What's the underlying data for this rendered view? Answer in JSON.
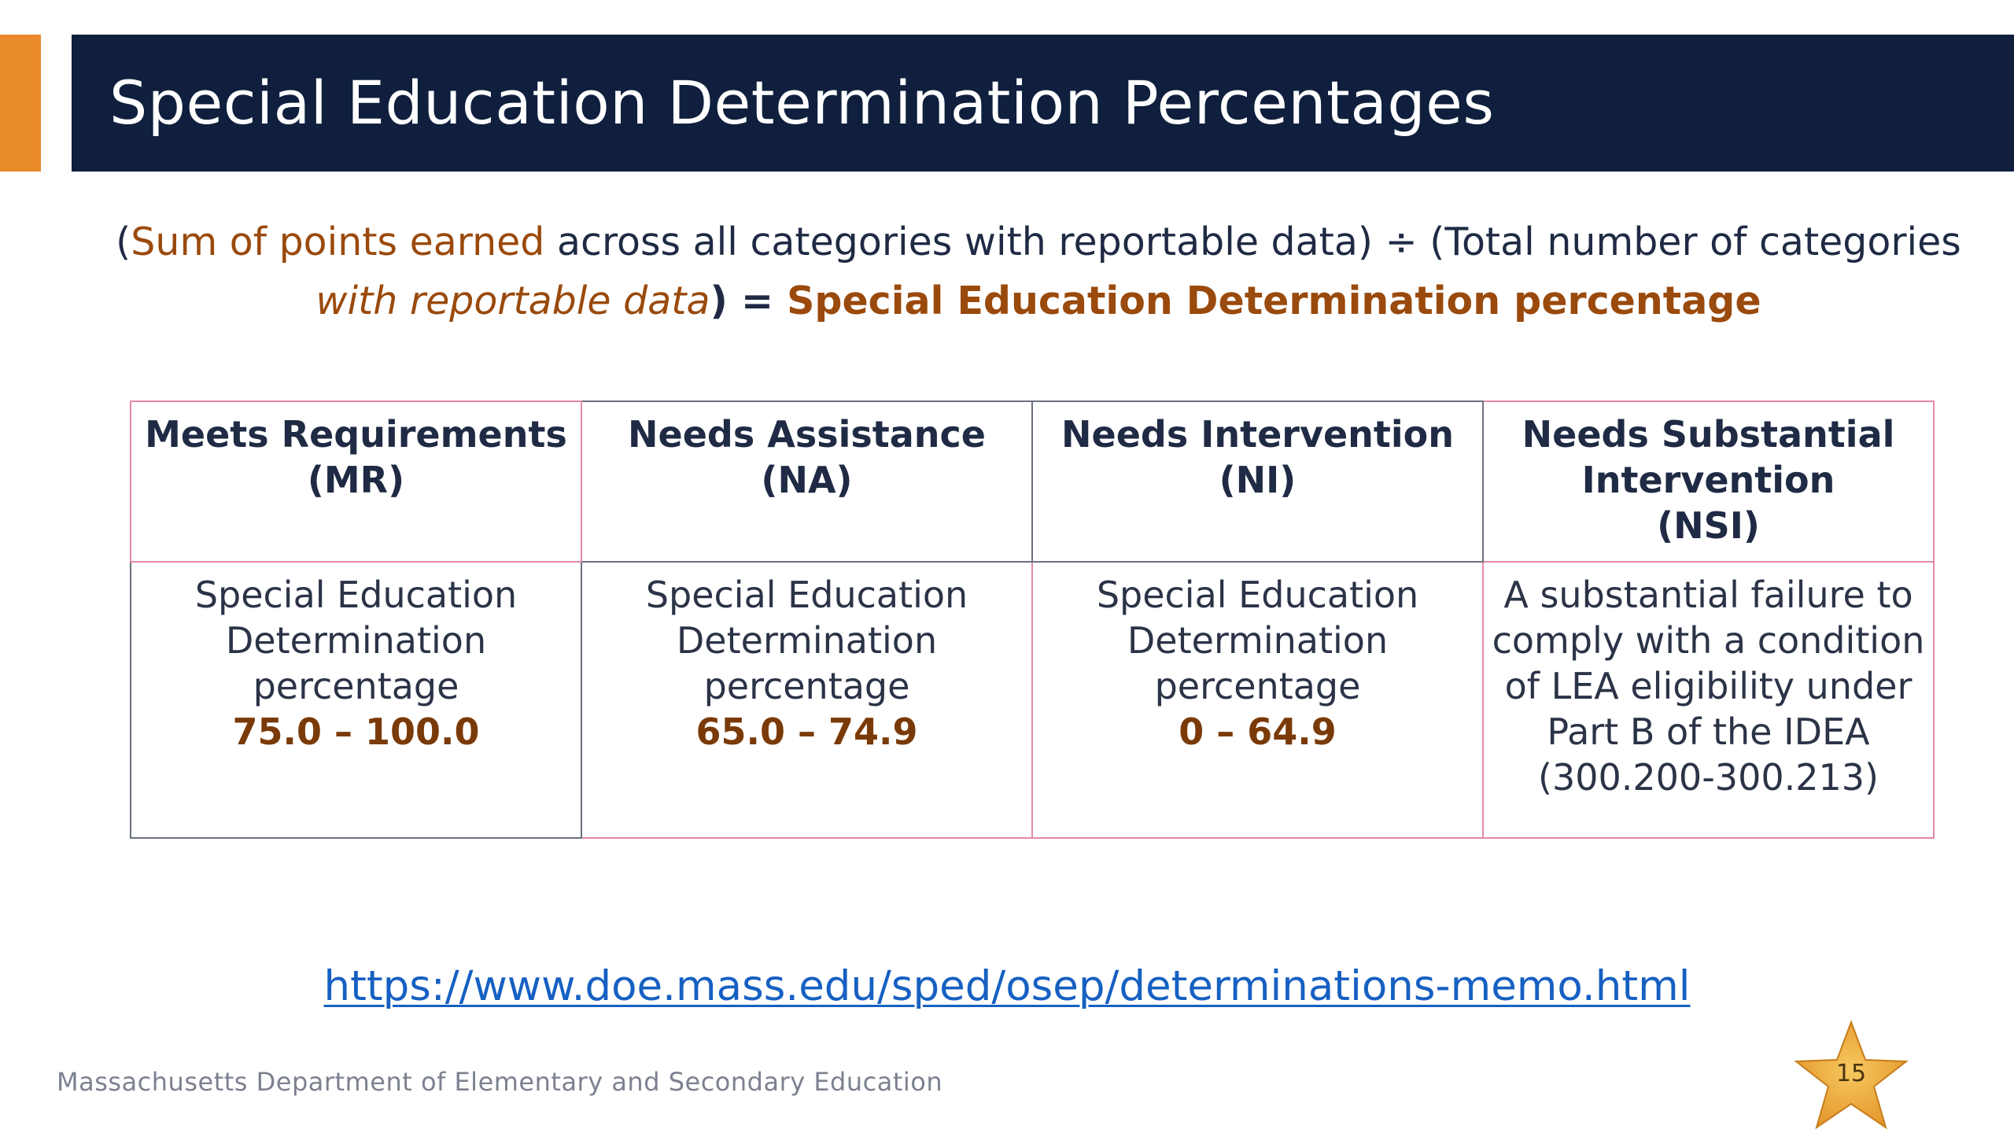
{
  "title": "Special Education Determination Percentages",
  "formula": {
    "p1": "(",
    "p2": "Sum of points earned",
    "p3": " across all categories with reportable data) ÷ (Total number of categories ",
    "p4": "with reportable data",
    "p5": ") = ",
    "p6": "Special Education Determination percentage"
  },
  "table": {
    "headers": [
      {
        "line1": "Meets Requirements",
        "line2": "(MR)",
        "line3": ""
      },
      {
        "line1": "Needs Assistance",
        "line2": "(NA)",
        "line3": ""
      },
      {
        "line1": "Needs Intervention",
        "line2": "(NI)",
        "line3": ""
      },
      {
        "line1": "Needs Substantial",
        "line2": "Intervention",
        "line3": "(NSI)"
      }
    ],
    "cells": [
      {
        "l1": "Special Education",
        "l2": "Determination",
        "l3": "percentage",
        "range": "75.0 – 100.0"
      },
      {
        "l1": "Special Education",
        "l2": "Determination",
        "l3": "percentage",
        "range": "65.0 – 74.9"
      },
      {
        "l1": "Special Education",
        "l2": "Determination",
        "l3": "percentage",
        "range": "0 – 64.9"
      },
      {
        "l1": "A substantial failure to",
        "l2": "comply with a condition",
        "l3": "of LEA eligibility under",
        "l4": "Part B of the IDEA",
        "l5": "(300.200-300.213)"
      }
    ]
  },
  "link": {
    "text": "https://www.doe.mass.edu/sped/osep/determinations-memo.html",
    "href": "https://www.doe.mass.edu/sped/osep/determinations-memo.html"
  },
  "footer": "Massachusetts Department of Elementary and Secondary Education",
  "page_number": "15",
  "colors": {
    "title_bar": "#0f1f3d",
    "accent": "#e8892a",
    "highlight_text": "#9a4a0c",
    "link": "#1660c2",
    "star": "#f2a93b"
  },
  "icons": {
    "page_badge": "star-icon"
  }
}
